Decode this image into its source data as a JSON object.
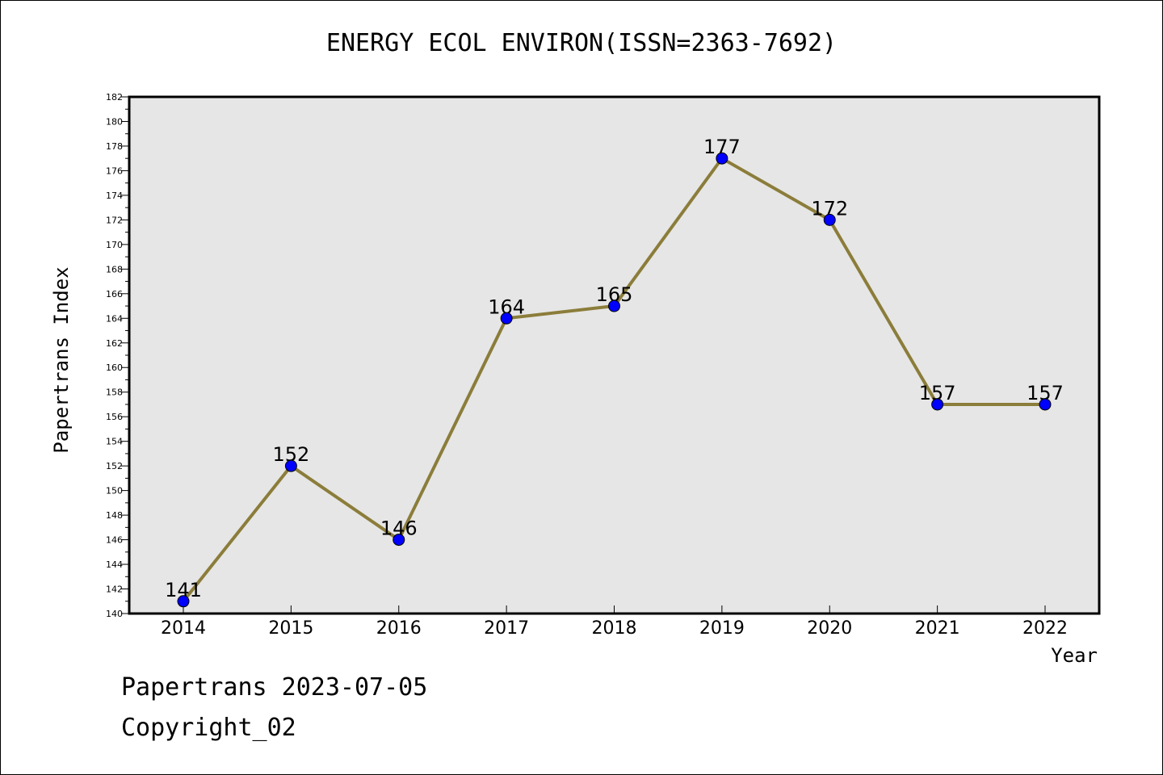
{
  "chart_data": {
    "type": "line",
    "title": "ENERGY ECOL ENVIRON(ISSN=2363-7692)",
    "xlabel": "Year",
    "ylabel": "Papertrans Index",
    "categories": [
      "2014",
      "2015",
      "2016",
      "2017",
      "2018",
      "2019",
      "2020",
      "2021",
      "2022"
    ],
    "series": [
      {
        "values": [
          141,
          152,
          146,
          164,
          165,
          177,
          172,
          157,
          157
        ],
        "line_color": "#8b7d3a",
        "marker_color": "#0000ff"
      }
    ],
    "ylim": [
      140,
      182
    ],
    "yticks": [
      "140",
      "142",
      "144",
      "146",
      "148",
      "150",
      "152",
      "154",
      "156",
      "158",
      "160",
      "162",
      "164",
      "166",
      "168",
      "170",
      "172",
      "174",
      "176",
      "178",
      "180",
      "182"
    ],
    "grid": false,
    "legend": "none",
    "plot_background": "#e6e6e6"
  },
  "footer": {
    "date_text": "Papertrans 2023-07-05",
    "copyright_text": "Copyright_02"
  }
}
